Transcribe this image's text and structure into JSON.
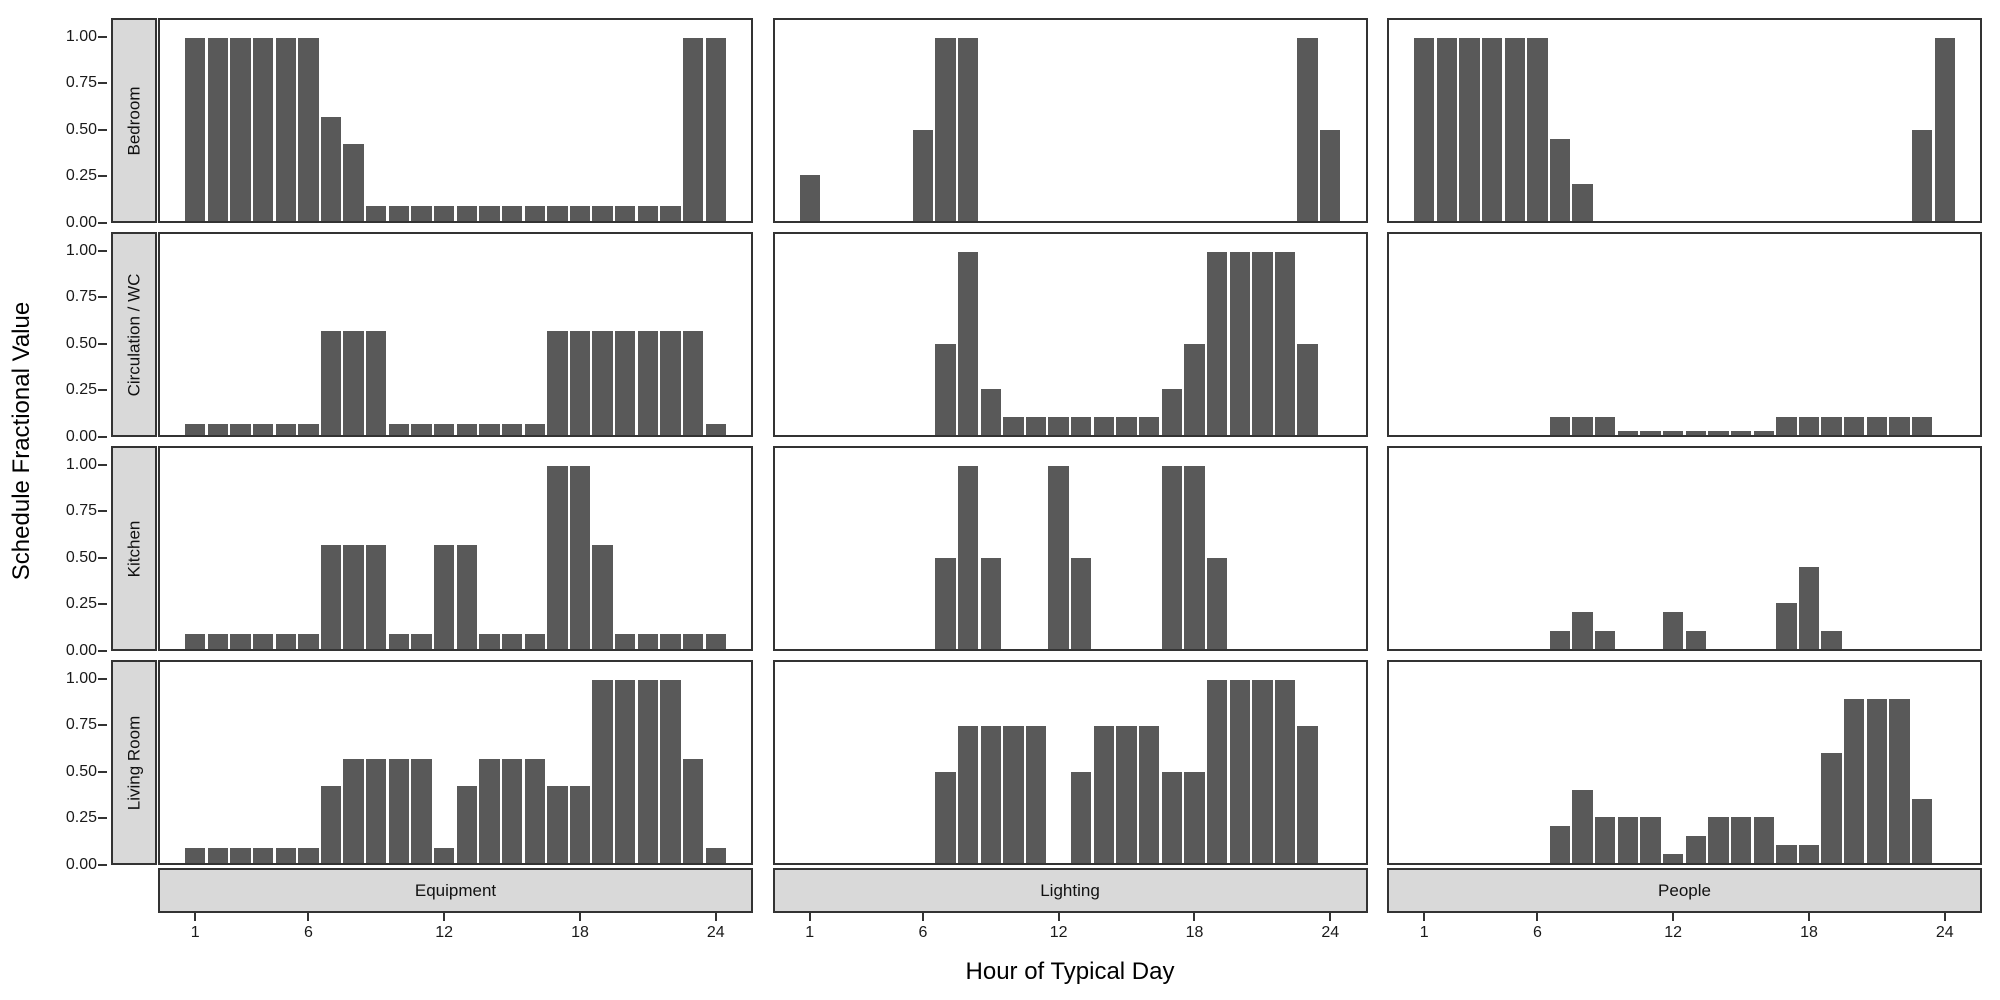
{
  "chart_data": {
    "type": "bar",
    "title": "",
    "xlabel": "Hour of Typical Day",
    "ylabel": "Schedule Fractional Value",
    "x": [
      1,
      2,
      3,
      4,
      5,
      6,
      7,
      8,
      9,
      10,
      11,
      12,
      13,
      14,
      15,
      16,
      17,
      18,
      19,
      20,
      21,
      22,
      23,
      24
    ],
    "x_ticks": [
      1,
      6,
      12,
      18,
      24
    ],
    "y_ticks": [
      {
        "value": 1.0,
        "label": "1.00"
      },
      {
        "value": 0.75,
        "label": "0.75"
      },
      {
        "value": 0.5,
        "label": "0.50"
      },
      {
        "value": 0.25,
        "label": "0.25"
      },
      {
        "value": 0.0,
        "label": "0.00"
      }
    ],
    "ylim": [
      0,
      1.1
    ],
    "grid": false,
    "legend": "none",
    "row_facets": [
      "Bedroom",
      "Circulation / WC",
      "Kitchen",
      "Living Room"
    ],
    "col_facets": [
      "Equipment",
      "Lighting",
      "People"
    ],
    "bar_color": "#595959",
    "strip_fill": "#d9d9d9",
    "border_color": "#333333",
    "series": [
      {
        "row": "Bedroom",
        "col": "Equipment",
        "values": [
          1,
          1,
          1,
          1,
          1,
          1,
          0.57,
          0.42,
          0.08,
          0.08,
          0.08,
          0.08,
          0.08,
          0.08,
          0.08,
          0.08,
          0.08,
          0.08,
          0.08,
          0.08,
          0.08,
          0.08,
          1,
          1
        ]
      },
      {
        "row": "Bedroom",
        "col": "Lighting",
        "values": [
          0.25,
          0,
          0,
          0,
          0,
          0.5,
          1,
          1,
          0,
          0,
          0,
          0,
          0,
          0,
          0,
          0,
          0,
          0,
          0,
          0,
          0,
          0,
          1,
          0.5
        ]
      },
      {
        "row": "Bedroom",
        "col": "People",
        "values": [
          1,
          1,
          1,
          1,
          1,
          1,
          0.45,
          0.2,
          0,
          0,
          0,
          0,
          0,
          0,
          0,
          0,
          0,
          0,
          0,
          0,
          0,
          0,
          0.5,
          1
        ]
      },
      {
        "row": "Circulation / WC",
        "col": "Equipment",
        "values": [
          0.06,
          0.06,
          0.06,
          0.06,
          0.06,
          0.06,
          0.57,
          0.57,
          0.57,
          0.06,
          0.06,
          0.06,
          0.06,
          0.06,
          0.06,
          0.06,
          0.57,
          0.57,
          0.57,
          0.57,
          0.57,
          0.57,
          0.57,
          0.06
        ]
      },
      {
        "row": "Circulation / WC",
        "col": "Lighting",
        "values": [
          0,
          0,
          0,
          0,
          0,
          0,
          0.5,
          1,
          0.25,
          0.1,
          0.1,
          0.1,
          0.1,
          0.1,
          0.1,
          0.1,
          0.25,
          0.5,
          1,
          1,
          1,
          1,
          0.5,
          0
        ]
      },
      {
        "row": "Circulation / WC",
        "col": "People",
        "values": [
          0,
          0,
          0,
          0,
          0,
          0,
          0.1,
          0.1,
          0.1,
          0.02,
          0.02,
          0.02,
          0.02,
          0.02,
          0.02,
          0.02,
          0.1,
          0.1,
          0.1,
          0.1,
          0.1,
          0.1,
          0.1,
          0
        ]
      },
      {
        "row": "Kitchen",
        "col": "Equipment",
        "values": [
          0.08,
          0.08,
          0.08,
          0.08,
          0.08,
          0.08,
          0.57,
          0.57,
          0.57,
          0.08,
          0.08,
          0.57,
          0.57,
          0.08,
          0.08,
          0.08,
          1,
          1,
          0.57,
          0.08,
          0.08,
          0.08,
          0.08,
          0.08
        ]
      },
      {
        "row": "Kitchen",
        "col": "Lighting",
        "values": [
          0,
          0,
          0,
          0,
          0,
          0,
          0.5,
          1,
          0.5,
          0,
          0,
          1,
          0.5,
          0,
          0,
          0,
          1,
          1,
          0.5,
          0,
          0,
          0,
          0,
          0
        ]
      },
      {
        "row": "Kitchen",
        "col": "People",
        "values": [
          0,
          0,
          0,
          0,
          0,
          0,
          0.1,
          0.2,
          0.1,
          0,
          0,
          0.2,
          0.1,
          0,
          0,
          0,
          0.25,
          0.45,
          0.1,
          0,
          0,
          0,
          0,
          0
        ]
      },
      {
        "row": "Living Room",
        "col": "Equipment",
        "values": [
          0.08,
          0.08,
          0.08,
          0.08,
          0.08,
          0.08,
          0.42,
          0.57,
          0.57,
          0.57,
          0.57,
          0.08,
          0.42,
          0.57,
          0.57,
          0.57,
          0.42,
          0.42,
          1,
          1,
          1,
          1,
          0.57,
          0.08
        ]
      },
      {
        "row": "Living Room",
        "col": "Lighting",
        "values": [
          0,
          0,
          0,
          0,
          0,
          0,
          0.5,
          0.75,
          0.75,
          0.75,
          0.75,
          0,
          0.5,
          0.75,
          0.75,
          0.75,
          0.5,
          0.5,
          1,
          1,
          1,
          1,
          0.75,
          0
        ]
      },
      {
        "row": "Living Room",
        "col": "People",
        "values": [
          0,
          0,
          0,
          0,
          0,
          0,
          0.2,
          0.4,
          0.25,
          0.25,
          0.25,
          0.05,
          0.15,
          0.25,
          0.25,
          0.25,
          0.1,
          0.1,
          0.6,
          0.9,
          0.9,
          0.9,
          0.35,
          0
        ]
      }
    ]
  }
}
